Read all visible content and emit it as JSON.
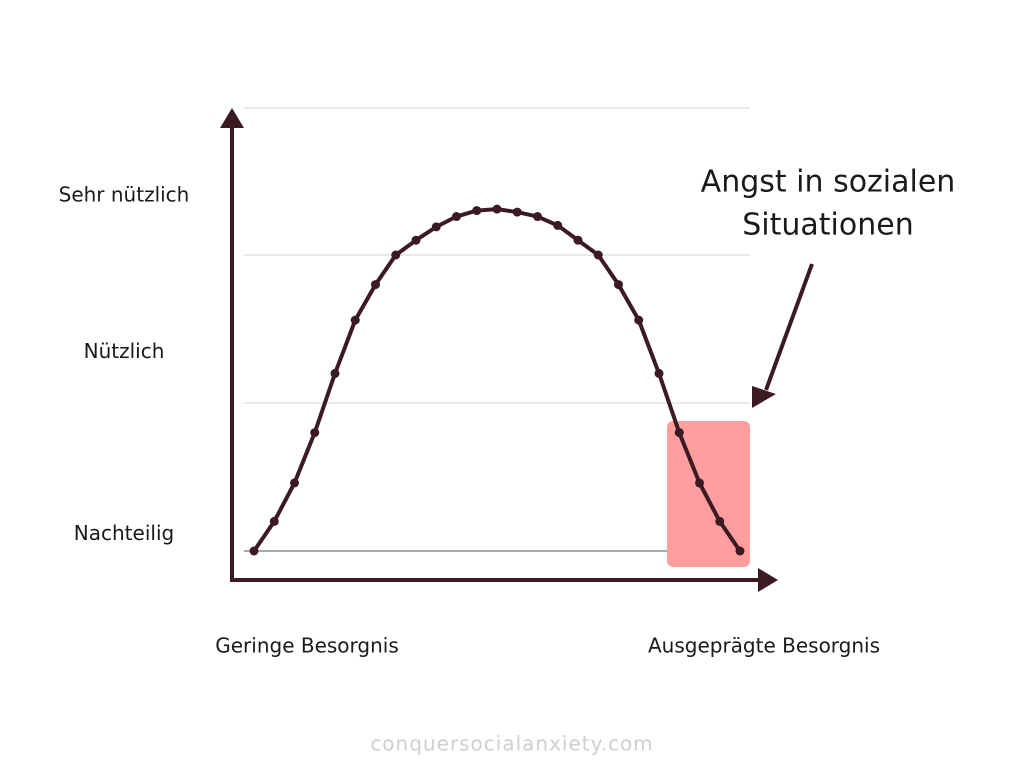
{
  "chart_data": {
    "type": "line",
    "values": [
      0,
      0.2,
      0.46,
      0.8,
      1.2,
      1.56,
      1.8,
      2.0,
      2.1,
      2.19,
      2.26,
      2.3,
      2.31,
      2.29,
      2.26,
      2.2,
      2.1,
      2.0,
      1.8,
      1.56,
      1.2,
      0.8,
      0.46,
      0.2,
      0
    ],
    "color": "#3b1a21",
    "ylim": [
      -0.2,
      3
    ],
    "yticks": [
      {
        "value": 0.11,
        "label": "Nachteilig"
      },
      {
        "value": 1.34,
        "label": "Nützlich"
      },
      {
        "value": 2.4,
        "label": "Sehr nützlich"
      }
    ],
    "x_axis_labels": [
      "Geringe Besorgnis",
      "Ausgeprägte Besorgnis"
    ],
    "annotation": [
      "Angst in sozialen",
      "Situationen"
    ],
    "highlight_color": "#ff9e9e",
    "footer": "conquersocialanxiety.com",
    "grid": true
  }
}
